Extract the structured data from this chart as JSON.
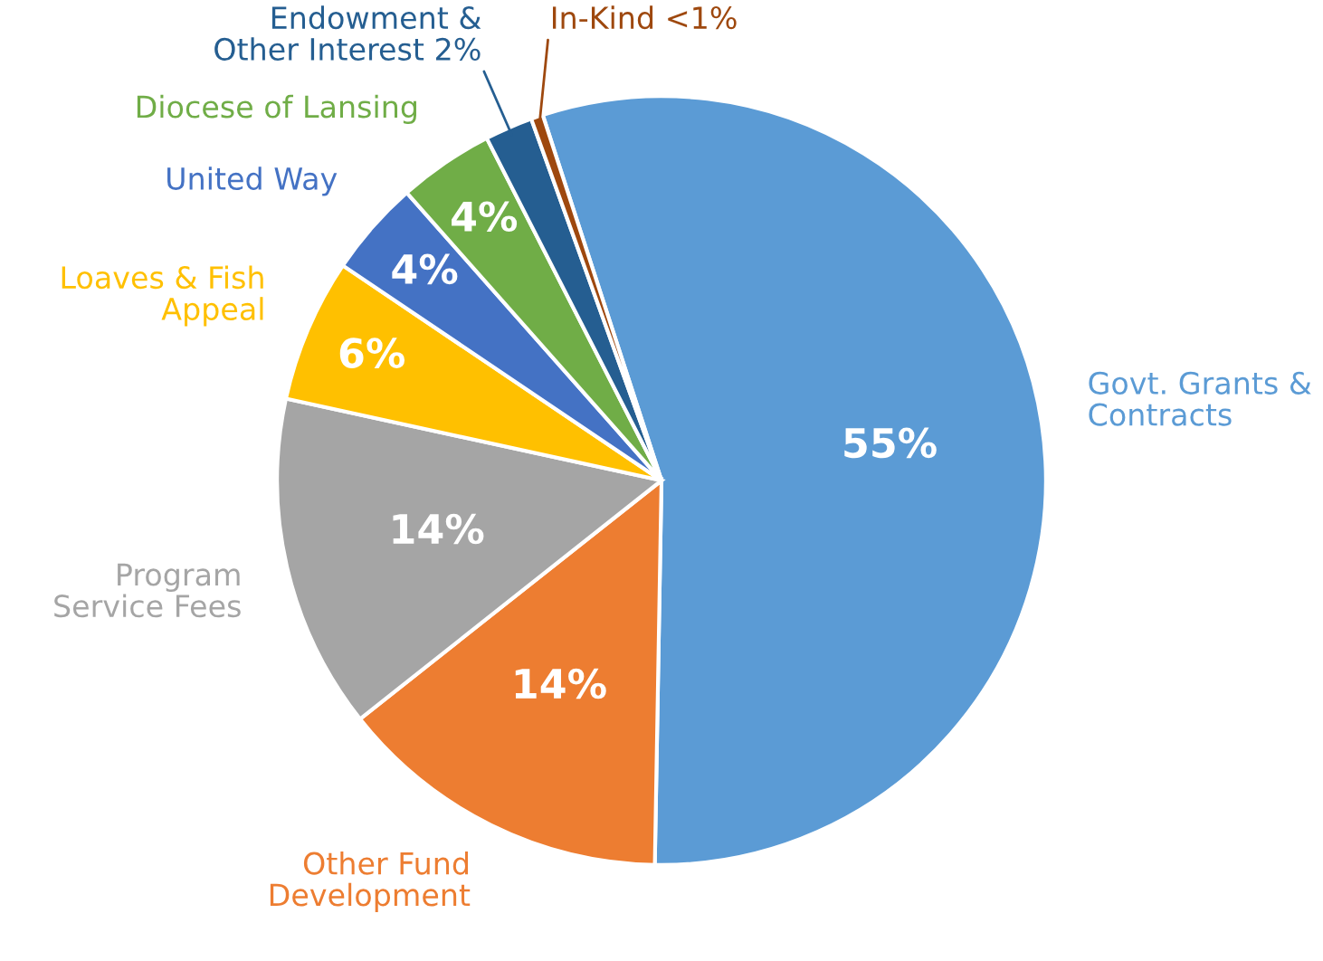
{
  "chart_data": {
    "type": "pie",
    "categories": [
      "Govt. Grants &\nContracts",
      "Other Fund\nDevelopment",
      "Program\nService Fees",
      "Loaves & Fish\nAppeal",
      "United Way",
      "Diocese of Lansing",
      "Endowment &\nOther Interest",
      "In-Kind"
    ],
    "values": [
      55,
      14,
      14,
      6,
      4,
      4,
      2,
      0.5
    ],
    "value_labels": [
      "55%",
      "14%",
      "14%",
      "6%",
      "4%",
      "4%",
      "2%",
      "<1%"
    ],
    "colors": [
      "#5b9bd5",
      "#ed7d31",
      "#a5a5a5",
      "#ffc000",
      "#4472c4",
      "#70ad47",
      "#255e91",
      "#9e480e"
    ],
    "legend": false
  }
}
